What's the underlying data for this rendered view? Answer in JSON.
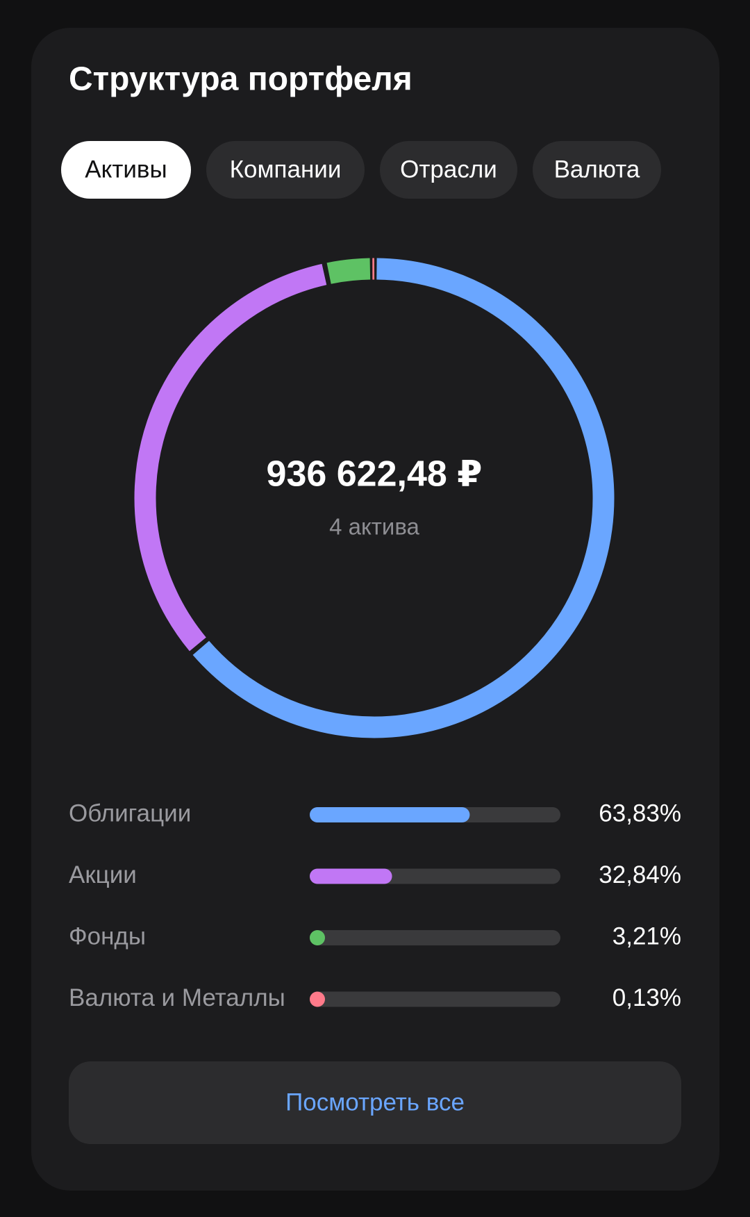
{
  "title": "Структура портфеля",
  "tabs": [
    {
      "label": "Активы",
      "active": true
    },
    {
      "label": "Компании",
      "active": false
    },
    {
      "label": "Отрасли",
      "active": false
    },
    {
      "label": "Валюта",
      "active": false
    }
  ],
  "chart_data": {
    "type": "donut",
    "center_value": "936 622,48 ₽",
    "center_caption": "4 актива",
    "categories": [
      "Облигации",
      "Акции",
      "Фонды",
      "Валюта и Металлы"
    ],
    "values": [
      63.83,
      32.84,
      3.21,
      0.13
    ],
    "value_labels": [
      "63,83%",
      "32,84%",
      "3,21%",
      "0,13%"
    ],
    "colors": [
      "#6aa6ff",
      "#c177f5",
      "#5ec264",
      "#ff7a8a"
    ]
  },
  "button": "Посмотреть все"
}
